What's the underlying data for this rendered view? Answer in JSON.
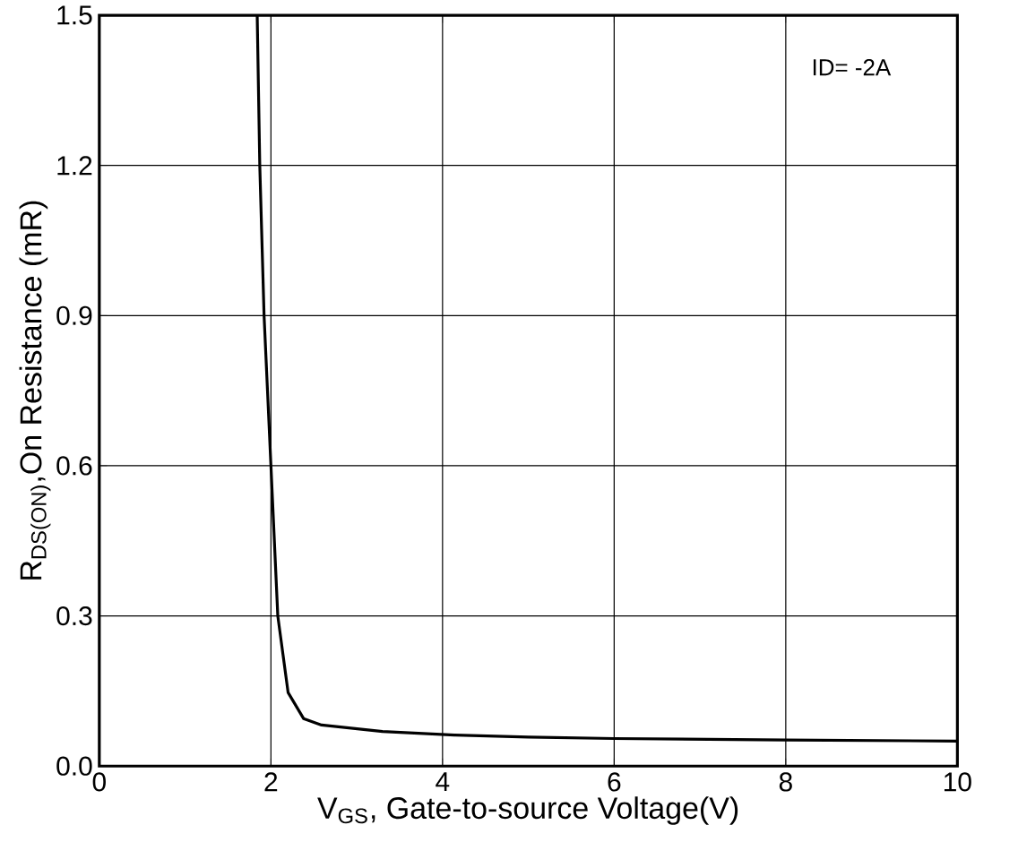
{
  "chart_data": {
    "type": "line",
    "xlabel": "V$_{GS}$, Gate-to-source Voltage(V)",
    "ylabel": "R$_{DS(ON)}$,On Resistance (mR)",
    "x": [
      1.84,
      1.87,
      1.92,
      2.0,
      2.08,
      2.2,
      2.38,
      2.59,
      3.3,
      4.14,
      5.0,
      6.0,
      8.0,
      10.0
    ],
    "series": [
      {
        "color": "#000000",
        "values": [
          1.5,
          1.2,
          0.9,
          0.6,
          0.3,
          0.147,
          0.095,
          0.082,
          0.069,
          0.062,
          0.058,
          0.055,
          0.052,
          0.05
        ]
      }
    ],
    "xlim": [
      0,
      10
    ],
    "ylim": [
      0.0,
      1.5
    ],
    "xticks": [
      0,
      2,
      4,
      6,
      8,
      10
    ],
    "yticks": [
      {
        "value": 0.0,
        "label": "0.0"
      },
      {
        "value": 0.3,
        "label": "0.3"
      },
      {
        "value": 0.6,
        "label": "0.6"
      },
      {
        "value": 0.9,
        "label": "0.9"
      },
      {
        "value": 1.2,
        "label": "1.2"
      },
      {
        "value": 1.5,
        "label": "1.5"
      }
    ],
    "grid": true,
    "marker": "none",
    "line_style": "solid",
    "annotations": [
      "ID= -2A"
    ]
  }
}
